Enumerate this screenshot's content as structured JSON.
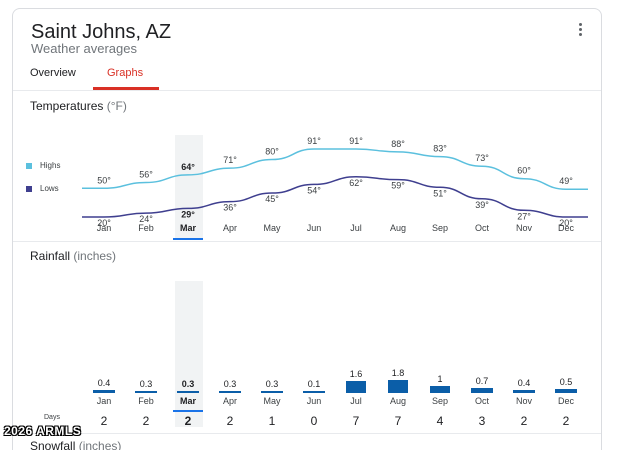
{
  "header": {
    "title": "Saint Johns, AZ",
    "subtitle": "Weather averages"
  },
  "tabs": [
    {
      "label": "Overview",
      "active": false
    },
    {
      "label": "Graphs",
      "active": true
    }
  ],
  "temperatures": {
    "title": "Temperatures",
    "unit": "(°F)",
    "legend": {
      "highs": "Highs",
      "lows": "Lows"
    }
  },
  "rainfall": {
    "title": "Rainfall",
    "unit": "(inches)",
    "days_label": "Days"
  },
  "snowfall": {
    "title": "Snowfall",
    "unit": "(inches)"
  },
  "selected_month": "Mar",
  "colors": {
    "highs": "#5bc0de",
    "lows": "#3f3f8f",
    "rain_bar": "#0b5ea8",
    "accent": "#d93025",
    "selected": "#1a73e8"
  },
  "chart_data": [
    {
      "type": "line",
      "categories": [
        "Jan",
        "Feb",
        "Mar",
        "Apr",
        "May",
        "Jun",
        "Jul",
        "Aug",
        "Sep",
        "Oct",
        "Nov",
        "Dec"
      ],
      "series": [
        {
          "name": "Highs",
          "values": [
            50,
            56,
            64,
            71,
            80,
            91,
            91,
            88,
            83,
            73,
            60,
            49
          ]
        },
        {
          "name": "Lows",
          "values": [
            20,
            24,
            29,
            36,
            45,
            54,
            62,
            59,
            51,
            39,
            27,
            20
          ]
        }
      ],
      "value_labels": {
        "highs": [
          "50°",
          "56°",
          "64°",
          "71°",
          "80°",
          "91°",
          "91°",
          "88°",
          "83°",
          "73°",
          "60°",
          "49°"
        ],
        "lows": [
          "20°",
          "24°",
          "29°",
          "36°",
          "45°",
          "54°",
          "62°",
          "59°",
          "51°",
          "39°",
          "27°",
          "20°"
        ]
      },
      "title": "Temperatures",
      "ylabel": "(°F)"
    },
    {
      "type": "bar",
      "categories": [
        "Jan",
        "Feb",
        "Mar",
        "Apr",
        "May",
        "Jun",
        "Jul",
        "Aug",
        "Sep",
        "Oct",
        "Nov",
        "Dec"
      ],
      "values": [
        0.4,
        0.3,
        0.3,
        0.3,
        0.3,
        0.1,
        1.6,
        1.8,
        1,
        0.7,
        0.4,
        0.5
      ],
      "value_labels": [
        "0.4",
        "0.3",
        "0.3",
        "0.3",
        "0.3",
        "0.1",
        "1.6",
        "1.8",
        "1",
        "0.7",
        "0.4",
        "0.5"
      ],
      "days": [
        "2",
        "2",
        "2",
        "2",
        "1",
        "0",
        "7",
        "7",
        "4",
        "3",
        "2",
        "2"
      ],
      "title": "Rainfall",
      "ylabel": "(inches)"
    }
  ],
  "watermark": "2026 ARMLS"
}
